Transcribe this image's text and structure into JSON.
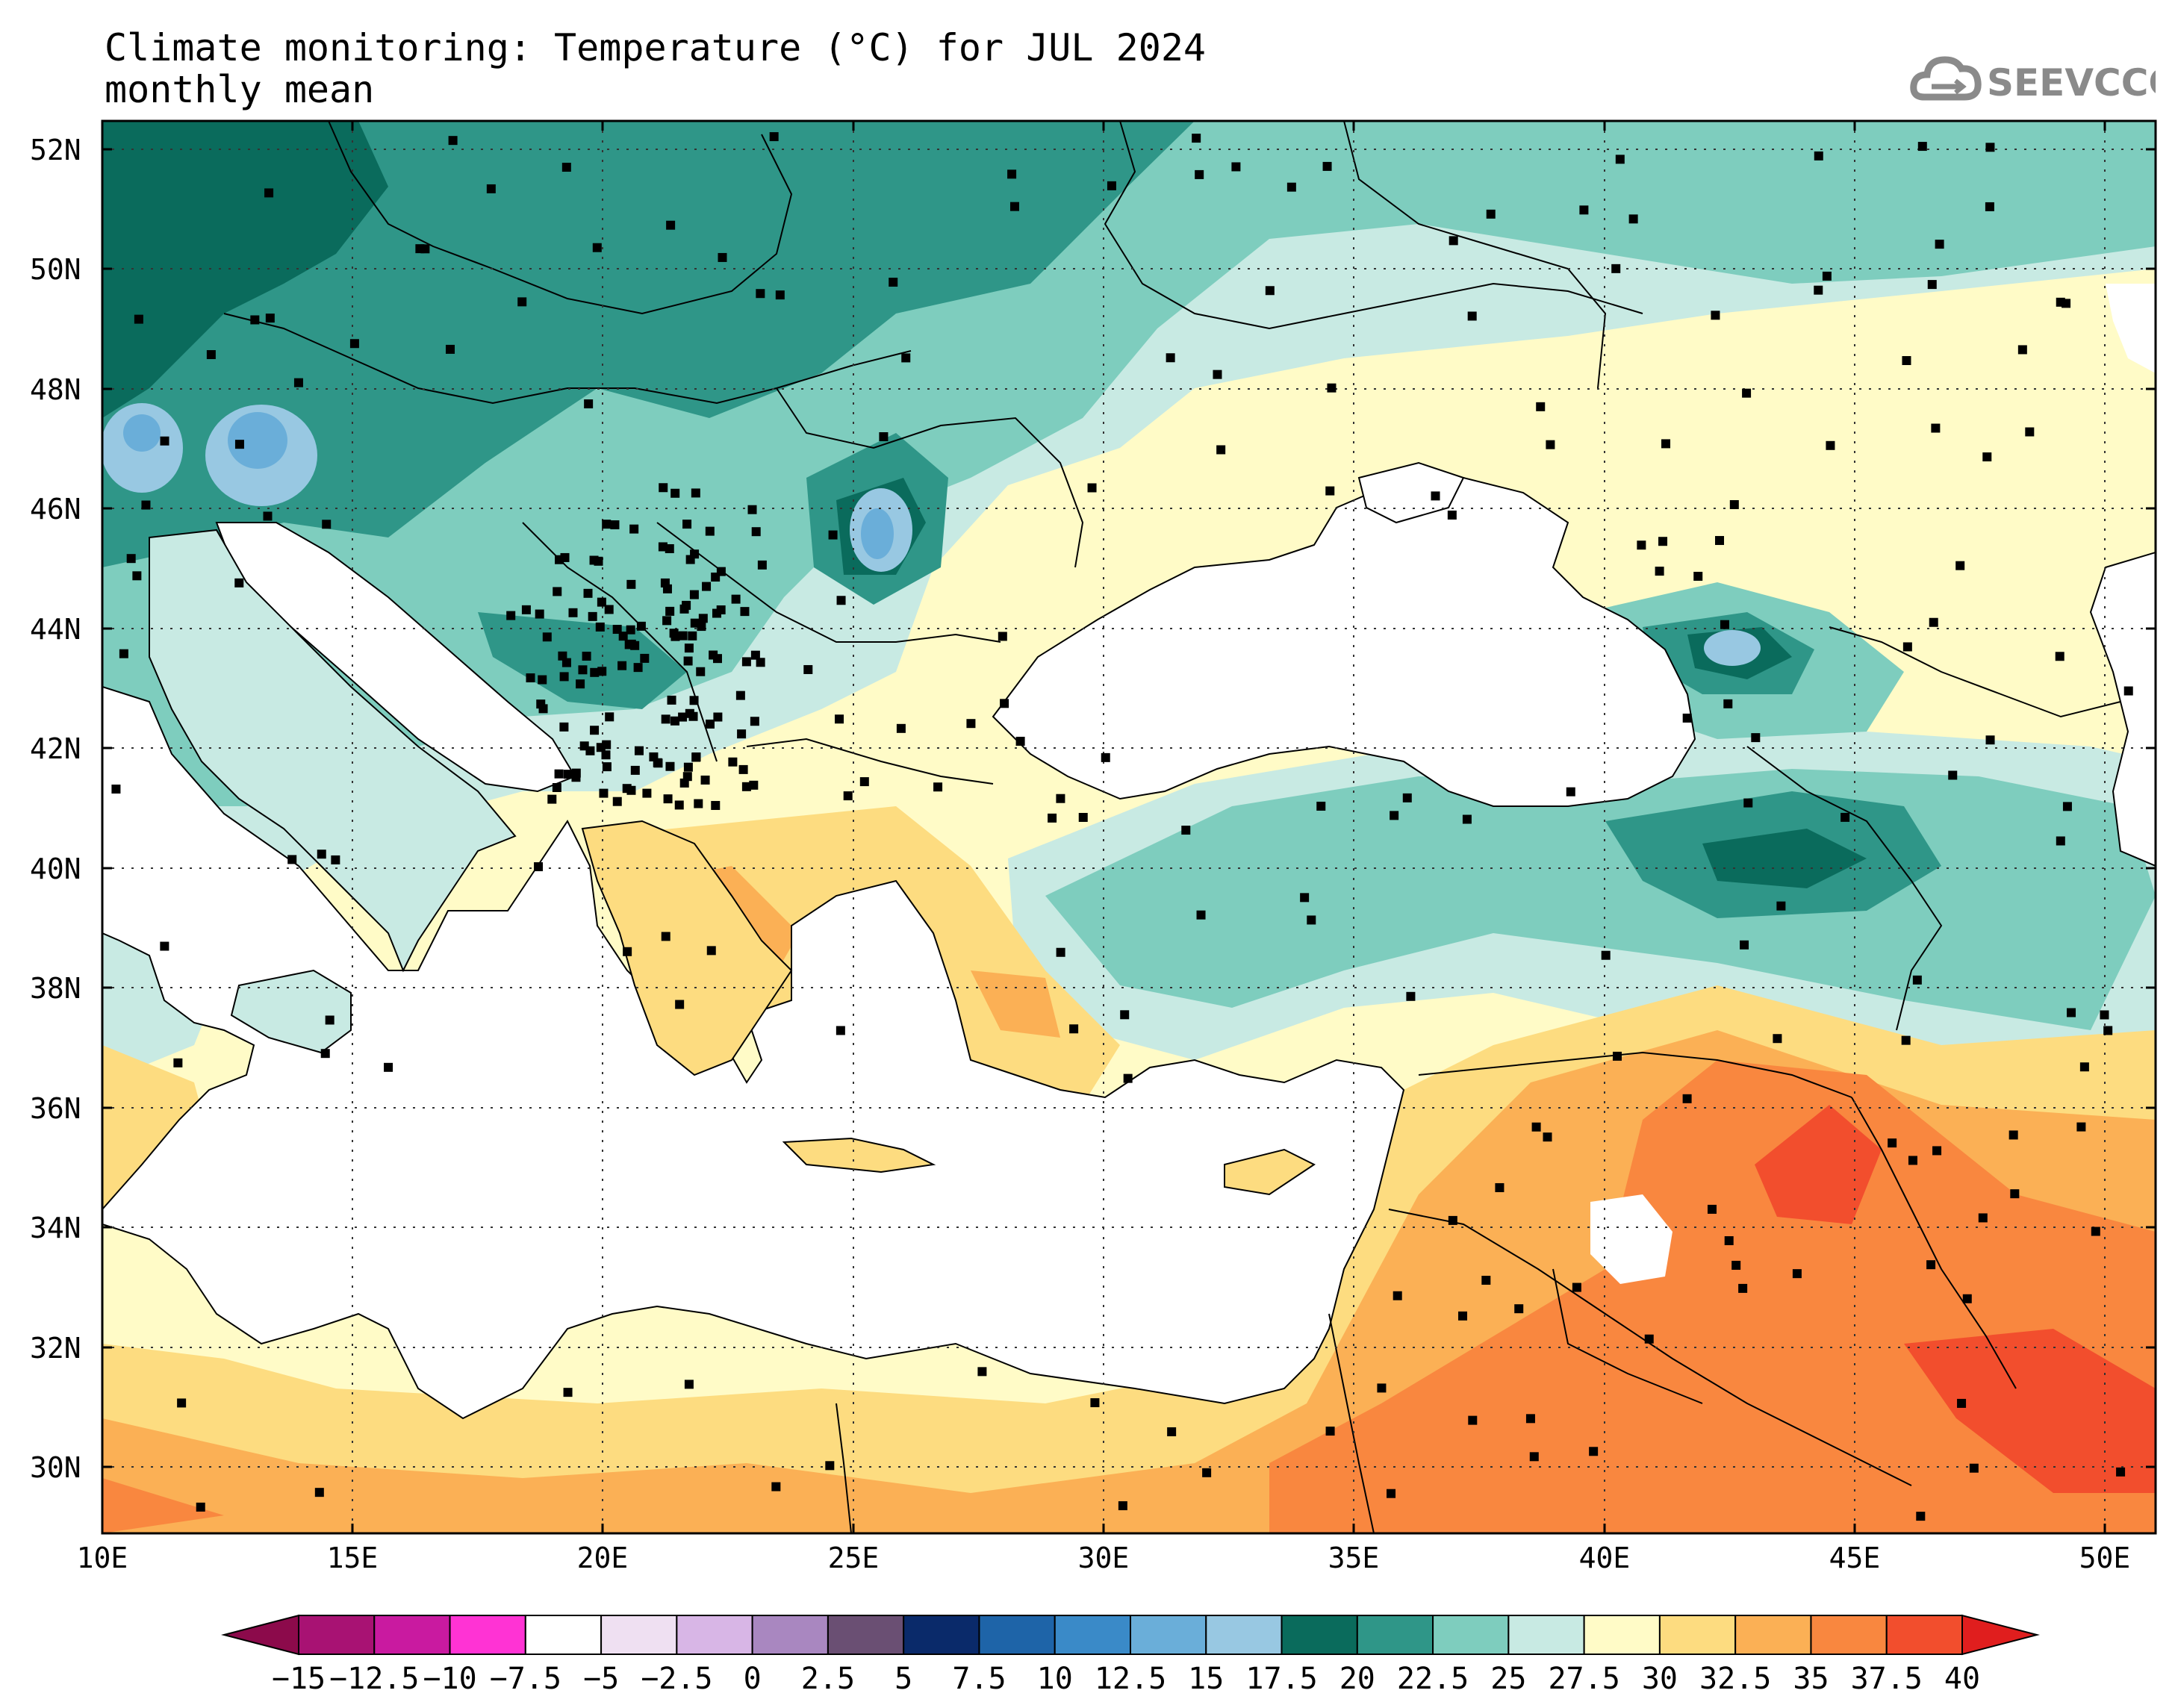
{
  "header": {
    "title": "Climate monitoring: Temperature (°C) for JUL 2024",
    "subtitle": "monthly mean",
    "logo_text": "SEEVCCC"
  },
  "map": {
    "lon_range": [
      10,
      51
    ],
    "lat_range": [
      29,
      52.6
    ],
    "lat_labels": [
      "52N",
      "50N",
      "48N",
      "46N",
      "44N",
      "42N",
      "40N",
      "38N",
      "36N",
      "34N",
      "32N",
      "30N"
    ],
    "lat_values": [
      52,
      50,
      48,
      46,
      44,
      42,
      40,
      38,
      36,
      34,
      32,
      30
    ],
    "lon_labels": [
      "10E",
      "15E",
      "20E",
      "25E",
      "30E",
      "35E",
      "40E",
      "45E",
      "50E"
    ],
    "lon_values": [
      10,
      15,
      20,
      25,
      30,
      35,
      40,
      45,
      50
    ],
    "gridlines": "dotted",
    "variable": "Temperature",
    "units": "°C"
  },
  "colorbar": {
    "labels": [
      "-15",
      "-12.5",
      "-10",
      "-7.5",
      "-5",
      "-2.5",
      "0",
      "2.5",
      "5",
      "7.5",
      "10",
      "12.5",
      "15",
      "17.5",
      "20",
      "22.5",
      "25",
      "27.5",
      "30",
      "32.5",
      "35",
      "37.5",
      "40"
    ],
    "colors": [
      "#8c0a4b",
      "#a81273",
      "#c91aa0",
      "#ff33d4",
      "#ffffff",
      "#efe0f2",
      "#d8b6e6",
      "#a987c0",
      "#6a4f73",
      "#0a2a6a",
      "#1e64a8",
      "#3a8ac8",
      "#6aaed9",
      "#98c8e2",
      "#0a6b5c",
      "#2f9688",
      "#7ecdbe",
      "#c8eae3",
      "#fffbc7",
      "#fddc80",
      "#fbb055",
      "#f9873f",
      "#f24e2d",
      "#e01e1e"
    ]
  },
  "stations_visible": true
}
